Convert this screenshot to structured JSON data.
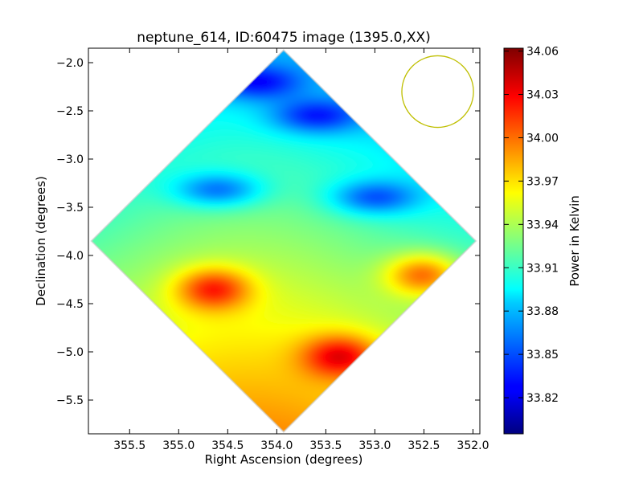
{
  "chart_data": {
    "type": "heatmap",
    "title": "neptune_614, ID:60475 image (1395.0,XX)",
    "xlabel": "Right Ascension (degrees)",
    "ylabel": "Declination (degrees)",
    "xlim": [
      355.92,
      351.93
    ],
    "ylim": [
      -5.85,
      -1.85
    ],
    "x_ticks": [
      355.5,
      355.0,
      354.5,
      354.0,
      353.5,
      353.0,
      352.5,
      352.0
    ],
    "x_tick_labels": [
      "355.5",
      "355.0",
      "354.5",
      "354.0",
      "353.5",
      "353.0",
      "352.5",
      "352.0"
    ],
    "y_ticks": [
      -2.0,
      -2.5,
      -3.0,
      -3.5,
      -4.0,
      -4.5,
      -5.0,
      -5.5
    ],
    "y_tick_labels": [
      "−2.0",
      "−2.5",
      "−3.0",
      "−3.5",
      "−4.0",
      "−4.5",
      "−5.0",
      "−5.5"
    ],
    "colorbar": {
      "label": "Power in Kelvin",
      "colormap": "jet",
      "vmin": 33.795,
      "vmax": 34.062,
      "ticks": [
        34.06,
        34.03,
        34.0,
        33.97,
        33.94,
        33.91,
        33.88,
        33.85,
        33.82
      ],
      "tick_labels": [
        "34.06",
        "34.03",
        "34.00",
        "33.97",
        "33.94",
        "33.91",
        "33.88",
        "33.85",
        "33.82"
      ]
    },
    "map_extent": {
      "center": [
        353.93,
        -3.85
      ],
      "ra_halfwidth": 1.96,
      "dec_halfwidth": 1.98,
      "shape": "diamond"
    },
    "features": [
      {
        "kind": "low",
        "ra": 354.6,
        "dec": -3.32,
        "value": 33.8
      },
      {
        "kind": "low",
        "ra": 353.6,
        "dec": -2.55,
        "value": 33.82
      },
      {
        "kind": "low",
        "ra": 353.0,
        "dec": -3.4,
        "value": 33.83
      },
      {
        "kind": "low",
        "ra": 354.2,
        "dec": -2.2,
        "value": 33.84
      },
      {
        "kind": "high",
        "ra": 354.65,
        "dec": -4.35,
        "value": 34.05
      },
      {
        "kind": "high",
        "ra": 353.35,
        "dec": -5.05,
        "value": 34.03
      },
      {
        "kind": "high",
        "ra": 352.5,
        "dec": -4.2,
        "value": 34.01
      }
    ],
    "beam_circle": {
      "ra": 352.36,
      "dec": -2.3,
      "radius_deg": 0.365,
      "color": "#bfbf00"
    },
    "grid": false,
    "legend": "none"
  }
}
